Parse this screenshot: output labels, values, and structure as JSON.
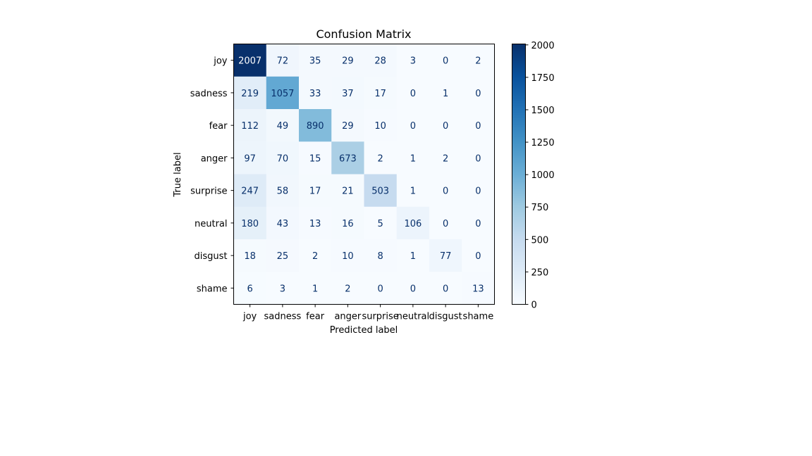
{
  "chart_data": {
    "type": "heatmap",
    "title": "Confusion Matrix",
    "xlabel": "Predicted label",
    "ylabel": "True label",
    "x_categories": [
      "joy",
      "sadness",
      "fear",
      "anger",
      "surprise",
      "neutral",
      "disgust",
      "shame"
    ],
    "y_categories": [
      "joy",
      "sadness",
      "fear",
      "anger",
      "surprise",
      "neutral",
      "disgust",
      "shame"
    ],
    "values": [
      [
        2007,
        72,
        35,
        29,
        28,
        3,
        0,
        2
      ],
      [
        219,
        1057,
        33,
        37,
        17,
        0,
        1,
        0
      ],
      [
        112,
        49,
        890,
        29,
        10,
        0,
        0,
        0
      ],
      [
        97,
        70,
        15,
        673,
        2,
        1,
        2,
        0
      ],
      [
        247,
        58,
        17,
        21,
        503,
        1,
        0,
        0
      ],
      [
        180,
        43,
        13,
        16,
        5,
        106,
        0,
        0
      ],
      [
        18,
        25,
        2,
        10,
        8,
        1,
        77,
        0
      ],
      [
        6,
        3,
        1,
        2,
        0,
        0,
        0,
        13
      ]
    ],
    "colormap": "Blues",
    "vmin": 0,
    "vmax": 2007,
    "colorbar_ticks": [
      0,
      250,
      500,
      750,
      1000,
      1250,
      1500,
      1750,
      2000
    ],
    "grid": false,
    "legend": "colorbar-right"
  }
}
